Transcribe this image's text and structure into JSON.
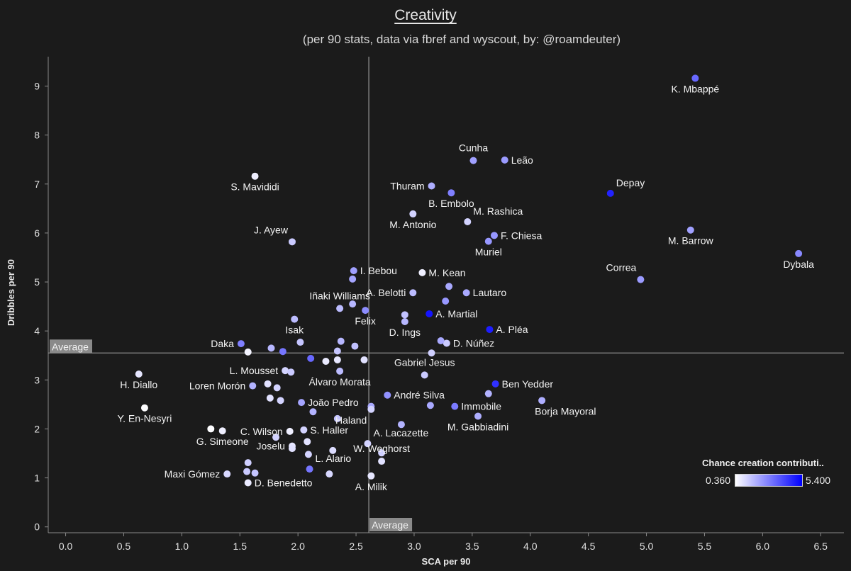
{
  "chart_data": {
    "type": "scatter",
    "title": "Creativity",
    "subtitle": "(per 90 stats, data via fbref and wyscout, by: @roamdeuter)",
    "xlabel": "SCA per 90",
    "ylabel": "Dribbles per 90",
    "xlim": [
      -0.15,
      6.7
    ],
    "ylim": [
      -0.12,
      9.6
    ],
    "x_ticks": [
      "0.0",
      "0.5",
      "1.0",
      "1.5",
      "2.0",
      "2.5",
      "3.0",
      "3.5",
      "4.0",
      "4.5",
      "5.0",
      "5.5",
      "6.0",
      "6.5"
    ],
    "y_ticks": [
      "0",
      "1",
      "2",
      "3",
      "4",
      "5",
      "6",
      "7",
      "8",
      "9"
    ],
    "grid": false,
    "reference_lines": {
      "x_average": 2.61,
      "y_average": 3.55,
      "x_label": "Average",
      "y_label": "Average"
    },
    "color_scale": {
      "title": "Chance creation contributi..",
      "min_label": "0.360",
      "max_label": "5.400",
      "min_value": 0.36,
      "max_value": 5.4,
      "min_color": "#ffffff",
      "max_color": "#0000ff",
      "placement": "bottom-right"
    },
    "points": [
      {
        "label": "K. Mbappé",
        "x": 5.42,
        "y": 9.16,
        "c": 3.6,
        "lp": "below"
      },
      {
        "label": "Cunha",
        "x": 3.51,
        "y": 7.48,
        "c": 2.4,
        "lp": "above"
      },
      {
        "label": "Leão",
        "x": 3.78,
        "y": 7.49,
        "c": 2.5,
        "lp": "right"
      },
      {
        "label": "Depay",
        "x": 4.69,
        "y": 6.81,
        "c": 5.1,
        "lp": "above-right"
      },
      {
        "label": "S. Mavididi",
        "x": 1.63,
        "y": 7.16,
        "c": 0.7,
        "lp": "below"
      },
      {
        "label": "Thuram",
        "x": 3.15,
        "y": 6.96,
        "c": 2.1,
        "lp": "left"
      },
      {
        "label": "B. Embolo",
        "x": 3.32,
        "y": 6.82,
        "c": 3.1,
        "lp": "below"
      },
      {
        "label": "M. Rashica",
        "x": 3.46,
        "y": 6.23,
        "c": 1.3,
        "lp": "above-right"
      },
      {
        "label": "M. Antonio",
        "x": 2.99,
        "y": 6.39,
        "c": 1.3,
        "lp": "below"
      },
      {
        "label": "F. Chiesa",
        "x": 3.69,
        "y": 5.95,
        "c": 2.6,
        "lp": "right"
      },
      {
        "label": "Muriel",
        "x": 3.64,
        "y": 5.83,
        "c": 2.6,
        "lp": "below"
      },
      {
        "label": "M. Barrow",
        "x": 5.38,
        "y": 6.06,
        "c": 2.4,
        "lp": "below"
      },
      {
        "label": "Dybala",
        "x": 6.31,
        "y": 5.58,
        "c": 2.9,
        "lp": "below"
      },
      {
        "label": "J. Ayew",
        "x": 1.95,
        "y": 5.82,
        "c": 1.5,
        "lp": "above-left"
      },
      {
        "label": "Correa",
        "x": 4.95,
        "y": 5.05,
        "c": 2.5,
        "lp": "above-left"
      },
      {
        "label": "I. Bebou",
        "x": 2.48,
        "y": 5.23,
        "c": 2.4,
        "lp": "right"
      },
      {
        "label": "",
        "x": 2.47,
        "y": 5.06,
        "c": 2.3,
        "lp": "none"
      },
      {
        "label": "M. Kean",
        "x": 3.07,
        "y": 5.19,
        "c": 0.7,
        "lp": "right"
      },
      {
        "label": "Lautaro",
        "x": 3.45,
        "y": 4.78,
        "c": 2.2,
        "lp": "right"
      },
      {
        "label": "",
        "x": 3.3,
        "y": 4.91,
        "c": 2.2,
        "lp": "none"
      },
      {
        "label": "A. Belotti",
        "x": 2.99,
        "y": 4.78,
        "c": 1.8,
        "lp": "left"
      },
      {
        "label": "Iñaki Williams",
        "x": 2.36,
        "y": 4.46,
        "c": 1.8,
        "lp": "above"
      },
      {
        "label": "",
        "x": 2.47,
        "y": 4.55,
        "c": 1.9,
        "lp": "none"
      },
      {
        "label": "Felix",
        "x": 2.58,
        "y": 4.42,
        "c": 2.8,
        "lp": "below"
      },
      {
        "label": "",
        "x": 3.27,
        "y": 4.61,
        "c": 2.6,
        "lp": "none"
      },
      {
        "label": "A. Martial",
        "x": 3.13,
        "y": 4.35,
        "c": 5.4,
        "lp": "right"
      },
      {
        "label": "",
        "x": 2.92,
        "y": 4.33,
        "c": 1.7,
        "lp": "none"
      },
      {
        "label": "D. Ings",
        "x": 2.92,
        "y": 4.19,
        "c": 1.9,
        "lp": "below"
      },
      {
        "label": "A. Pléa",
        "x": 3.65,
        "y": 4.03,
        "c": 5.2,
        "lp": "right"
      },
      {
        "label": "Isak",
        "x": 1.97,
        "y": 4.24,
        "c": 1.8,
        "lp": "below"
      },
      {
        "label": "Daka",
        "x": 1.51,
        "y": 3.74,
        "c": 3.1,
        "lp": "left"
      },
      {
        "label": "",
        "x": 1.57,
        "y": 3.57,
        "c": 0.6,
        "lp": "none"
      },
      {
        "label": "",
        "x": 1.77,
        "y": 3.65,
        "c": 1.9,
        "lp": "none"
      },
      {
        "label": "",
        "x": 1.87,
        "y": 3.58,
        "c": 3.3,
        "lp": "none"
      },
      {
        "label": "",
        "x": 2.02,
        "y": 3.77,
        "c": 1.6,
        "lp": "none"
      },
      {
        "label": "",
        "x": 2.37,
        "y": 3.79,
        "c": 1.9,
        "lp": "none"
      },
      {
        "label": "",
        "x": 2.34,
        "y": 3.59,
        "c": 1.6,
        "lp": "none"
      },
      {
        "label": "",
        "x": 2.49,
        "y": 3.69,
        "c": 1.7,
        "lp": "none"
      },
      {
        "label": "",
        "x": 2.11,
        "y": 3.44,
        "c": 3.6,
        "lp": "none"
      },
      {
        "label": "",
        "x": 2.24,
        "y": 3.38,
        "c": 0.8,
        "lp": "none"
      },
      {
        "label": "",
        "x": 2.34,
        "y": 3.41,
        "c": 0.9,
        "lp": "none"
      },
      {
        "label": "",
        "x": 2.57,
        "y": 3.41,
        "c": 1.0,
        "lp": "none"
      },
      {
        "label": "D. Núñez",
        "x": 3.28,
        "y": 3.75,
        "c": 1.5,
        "lp": "right"
      },
      {
        "label": "",
        "x": 3.23,
        "y": 3.8,
        "c": 2.2,
        "lp": "none"
      },
      {
        "label": "",
        "x": 3.15,
        "y": 3.55,
        "c": 1.4,
        "lp": "none"
      },
      {
        "label": "Gabriel Jesus",
        "x": 3.09,
        "y": 3.1,
        "c": 1.5,
        "lp": "above"
      },
      {
        "label": "L. Mousset",
        "x": 1.89,
        "y": 3.19,
        "c": 1.3,
        "lp": "left"
      },
      {
        "label": "",
        "x": 1.94,
        "y": 3.16,
        "c": 1.5,
        "lp": "none"
      },
      {
        "label": "Álvaro Morata",
        "x": 2.36,
        "y": 3.18,
        "c": 1.8,
        "lp": "below"
      },
      {
        "label": "Ben Yedder",
        "x": 3.7,
        "y": 2.92,
        "c": 4.8,
        "lp": "right"
      },
      {
        "label": "H. Diallo",
        "x": 0.63,
        "y": 3.12,
        "c": 0.9,
        "lp": "below"
      },
      {
        "label": "Loren Morón",
        "x": 1.61,
        "y": 2.88,
        "c": 2.0,
        "lp": "left"
      },
      {
        "label": "",
        "x": 1.74,
        "y": 2.92,
        "c": 1.0,
        "lp": "none"
      },
      {
        "label": "",
        "x": 1.82,
        "y": 2.84,
        "c": 1.3,
        "lp": "none"
      },
      {
        "label": "",
        "x": 1.76,
        "y": 2.63,
        "c": 1.0,
        "lp": "none"
      },
      {
        "label": "",
        "x": 1.85,
        "y": 2.58,
        "c": 1.3,
        "lp": "none"
      },
      {
        "label": "João Pedro",
        "x": 2.03,
        "y": 2.54,
        "c": 2.3,
        "lp": "right"
      },
      {
        "label": "",
        "x": 2.13,
        "y": 2.35,
        "c": 2.0,
        "lp": "none"
      },
      {
        "label": "André Silva",
        "x": 2.77,
        "y": 2.69,
        "c": 2.7,
        "lp": "right"
      },
      {
        "label": "",
        "x": 3.64,
        "y": 2.72,
        "c": 2.0,
        "lp": "none"
      },
      {
        "label": "Borja Mayoral",
        "x": 4.1,
        "y": 2.58,
        "c": 2.1,
        "lp": "below-right"
      },
      {
        "label": "Immobile",
        "x": 3.35,
        "y": 2.46,
        "c": 3.2,
        "lp": "right"
      },
      {
        "label": "",
        "x": 3.14,
        "y": 2.48,
        "c": 2.2,
        "lp": "none"
      },
      {
        "label": "",
        "x": 2.63,
        "y": 2.46,
        "c": 2.2,
        "lp": "none"
      },
      {
        "label": "Haland",
        "x": 2.63,
        "y": 2.4,
        "c": 1.3,
        "lp": "below-left"
      },
      {
        "label": "M. Gabbiadini",
        "x": 3.55,
        "y": 2.26,
        "c": 2.1,
        "lp": "below"
      },
      {
        "label": "Y. En-Nesyri",
        "x": 0.68,
        "y": 2.43,
        "c": 0.4,
        "lp": "below"
      },
      {
        "label": "",
        "x": 2.34,
        "y": 2.21,
        "c": 1.6,
        "lp": "none"
      },
      {
        "label": "",
        "x": 2.89,
        "y": 2.09,
        "c": 2.0,
        "lp": "none"
      },
      {
        "label": "C. Wilson",
        "x": 1.93,
        "y": 1.95,
        "c": 0.7,
        "lp": "left"
      },
      {
        "label": "S. Haller",
        "x": 2.05,
        "y": 1.98,
        "c": 1.3,
        "lp": "right"
      },
      {
        "label": "",
        "x": 1.25,
        "y": 2.0,
        "c": 0.4,
        "lp": "none"
      },
      {
        "label": "G. Simeone",
        "x": 1.35,
        "y": 1.96,
        "c": 0.7,
        "lp": "below"
      },
      {
        "label": "",
        "x": 1.81,
        "y": 1.83,
        "c": 1.3,
        "lp": "none"
      },
      {
        "label": "A. Lacazette",
        "x": 2.6,
        "y": 1.7,
        "c": 1.3,
        "lp": "above-right"
      },
      {
        "label": "Joselu",
        "x": 1.95,
        "y": 1.65,
        "c": 0.9,
        "lp": "left"
      },
      {
        "label": "",
        "x": 1.95,
        "y": 1.6,
        "c": 1.0,
        "lp": "none"
      },
      {
        "label": "",
        "x": 2.08,
        "y": 1.74,
        "c": 1.0,
        "lp": "none"
      },
      {
        "label": "",
        "x": 2.09,
        "y": 1.48,
        "c": 1.3,
        "lp": "none"
      },
      {
        "label": "",
        "x": 2.3,
        "y": 1.56,
        "c": 1.1,
        "lp": "none"
      },
      {
        "label": "",
        "x": 2.72,
        "y": 1.51,
        "c": 1.4,
        "lp": "none"
      },
      {
        "label": "L. Alario",
        "x": 2.1,
        "y": 1.18,
        "c": 3.3,
        "lp": "above-right"
      },
      {
        "label": "W. Weghorst",
        "x": 2.72,
        "y": 1.34,
        "c": 1.0,
        "lp": "above"
      },
      {
        "label": "",
        "x": 1.57,
        "y": 1.31,
        "c": 1.4,
        "lp": "none"
      },
      {
        "label": "",
        "x": 1.56,
        "y": 1.13,
        "c": 1.5,
        "lp": "none"
      },
      {
        "label": "",
        "x": 1.63,
        "y": 1.1,
        "c": 1.6,
        "lp": "none"
      },
      {
        "label": "Maxi Gómez",
        "x": 1.39,
        "y": 1.08,
        "c": 1.2,
        "lp": "left"
      },
      {
        "label": "D. Benedetto",
        "x": 1.57,
        "y": 0.9,
        "c": 0.8,
        "lp": "right"
      },
      {
        "label": "",
        "x": 2.27,
        "y": 1.08,
        "c": 1.2,
        "lp": "none"
      },
      {
        "label": "A. Milik",
        "x": 2.63,
        "y": 1.04,
        "c": 0.9,
        "lp": "below"
      }
    ]
  }
}
